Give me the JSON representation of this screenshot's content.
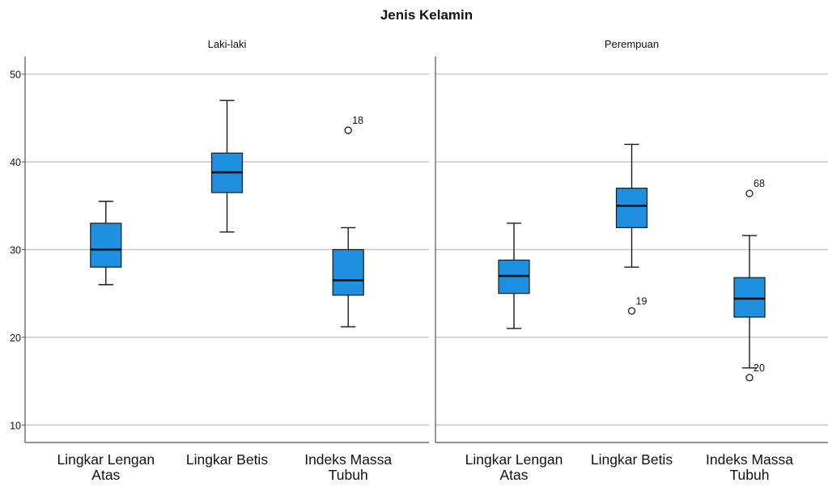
{
  "chart_data": {
    "type": "boxplot",
    "title": "Jenis Kelamin",
    "xlabel": "",
    "ylabel": "",
    "ylim": [
      8,
      52
    ],
    "yticks": [
      10,
      20,
      30,
      40,
      50
    ],
    "grid": true,
    "colors": {
      "box_fill": "#1f8fe0",
      "box_stroke": "#1a1a1a",
      "median": "#111111",
      "grid": "#c8c8c8",
      "axis": "#555555",
      "text": "#111111"
    },
    "categories": [
      [
        "Lingkar Lengan",
        "Atas"
      ],
      [
        "Lingkar Betis"
      ],
      [
        "Indeks Massa",
        "Tubuh"
      ]
    ],
    "panels": [
      {
        "label": "Laki-laki",
        "boxes": [
          {
            "whisker_low": 26,
            "q1": 28,
            "median": 30,
            "q3": 33,
            "whisker_high": 35.5,
            "outliers": []
          },
          {
            "whisker_low": 32,
            "q1": 36.5,
            "median": 38.8,
            "q3": 41,
            "whisker_high": 47,
            "outliers": []
          },
          {
            "whisker_low": 21.2,
            "q1": 24.8,
            "median": 26.5,
            "q3": 30,
            "whisker_high": 32.5,
            "outliers": [
              {
                "value": 43.6,
                "label": "18"
              }
            ]
          }
        ]
      },
      {
        "label": "Perempuan",
        "boxes": [
          {
            "whisker_low": 21,
            "q1": 25,
            "median": 27,
            "q3": 28.8,
            "whisker_high": 33,
            "outliers": []
          },
          {
            "whisker_low": 28,
            "q1": 32.5,
            "median": 35,
            "q3": 37,
            "whisker_high": 42,
            "outliers": [
              {
                "value": 23,
                "label": "19"
              }
            ]
          },
          {
            "whisker_low": 16.5,
            "q1": 22.3,
            "median": 24.4,
            "q3": 26.8,
            "whisker_high": 31.6,
            "outliers": [
              {
                "value": 36.4,
                "label": "68"
              },
              {
                "value": 15.4,
                "label": "20"
              }
            ]
          }
        ]
      }
    ]
  }
}
